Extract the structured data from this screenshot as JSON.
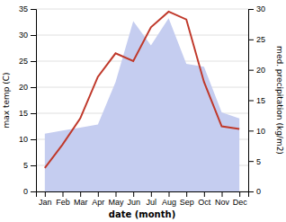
{
  "chart_data": {
    "type": "line",
    "categories": [
      "Jan",
      "Feb",
      "Mar",
      "Apr",
      "May",
      "Jun",
      "Jul",
      "Aug",
      "Sep",
      "Oct",
      "Nov",
      "Dec"
    ],
    "xlabel": "date (month)",
    "ylabel": "max temp (C)",
    "y2label": "med. precipitation (kg/m2)",
    "series": [
      {
        "type": "area",
        "axis": "y2",
        "color": "#c5cdf0",
        "values": [
          9.5,
          10.0,
          10.5,
          11.0,
          18.0,
          28.0,
          24.0,
          28.5,
          21.0,
          20.5,
          13.0,
          12.0
        ]
      },
      {
        "type": "line",
        "color": "#c0392b",
        "values": [
          4.5,
          9.0,
          14.0,
          22.0,
          26.5,
          25.0,
          31.5,
          34.5,
          33.0,
          21.0,
          12.5,
          12.0
        ]
      }
    ],
    "ylim": [
      0,
      35
    ],
    "yticks": [
      0,
      5,
      10,
      15,
      20,
      25,
      30,
      35
    ],
    "y2lim": [
      0,
      30
    ],
    "y2ticks": [
      0,
      5,
      10,
      15,
      20,
      25,
      30
    ],
    "grid": true
  }
}
